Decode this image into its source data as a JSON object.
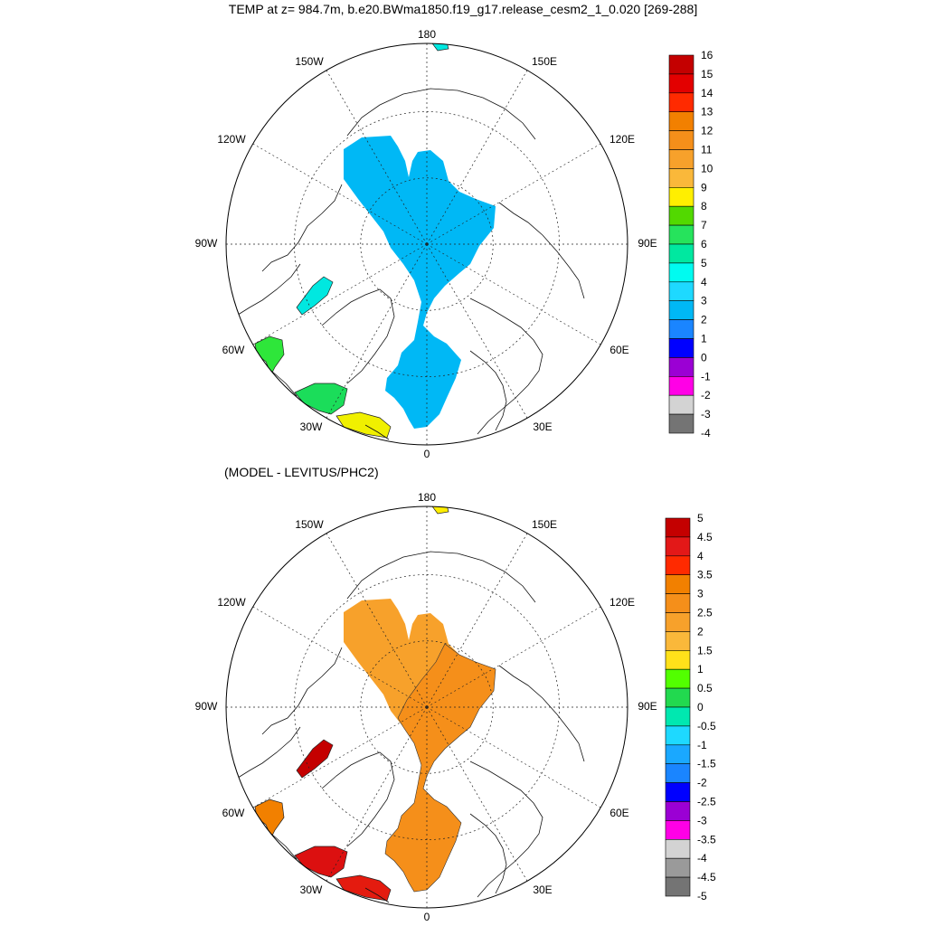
{
  "title": "TEMP at z= 984.7m, b.e20.BWma1850.f19_g17.release_cesm2_1_0.020 [269-288]",
  "subtitle": "(MODEL - LEVITUS/PHC2)",
  "lon_labels": [
    "180",
    "150E",
    "120E",
    "90E",
    "60E",
    "30E",
    "0",
    "30W",
    "60W",
    "90W",
    "120W",
    "150W"
  ],
  "panels": [
    {
      "name": "model-temperature",
      "fill_hex": "#00b8f5",
      "patches": [
        {
          "region": "atlantic-south",
          "hex": "#f0f000"
        },
        {
          "region": "atlantic-mid",
          "hex": "#1bdd5a"
        },
        {
          "region": "labrador",
          "hex": "#2ee63a"
        },
        {
          "region": "baffin",
          "hex": "#00e8e0"
        },
        {
          "region": "bering",
          "hex": "#00e8e0"
        }
      ],
      "colorbar": {
        "labels": [
          "16",
          "15",
          "14",
          "13",
          "12",
          "11",
          "10",
          "9",
          "8",
          "7",
          "6",
          "5",
          "4",
          "3",
          "2",
          "1",
          "0",
          "-1",
          "-2",
          "-3",
          "-4"
        ],
        "colors": [
          "#c40000",
          "#e30000",
          "#ff2a00",
          "#f28000",
          "#f58f1a",
          "#f7a12b",
          "#fab83a",
          "#ffef00",
          "#52d900",
          "#26e35c",
          "#00e8a0",
          "#00fbf0",
          "#1ed9ff",
          "#00b8f5",
          "#1a85ff",
          "#0000ff",
          "#9b00d4",
          "#ff00e6",
          "#d3d3d3",
          "#747474"
        ]
      }
    },
    {
      "name": "model-minus-levitus",
      "fill_hex": "#f7a12b",
      "fill2_hex": "#f58f1a",
      "patches": [
        {
          "region": "atlantic-south",
          "hex": "#e41b0f"
        },
        {
          "region": "atlantic-mid",
          "hex": "#dc1010"
        },
        {
          "region": "labrador",
          "hex": "#f28000"
        },
        {
          "region": "baffin",
          "hex": "#c40000"
        },
        {
          "region": "bering",
          "hex": "#ffee00"
        }
      ],
      "colorbar": {
        "labels": [
          "5",
          "4.5",
          "4",
          "3.5",
          "3",
          "2.5",
          "2",
          "1.5",
          "1",
          "0.5",
          "0",
          "-0.5",
          "-1",
          "-1.5",
          "-2",
          "-2.5",
          "-3",
          "-3.5",
          "-4",
          "-4.5",
          "-5"
        ],
        "colors": [
          "#c40000",
          "#e31818",
          "#ff2a00",
          "#f28000",
          "#f58f1a",
          "#f7a12b",
          "#fab83a",
          "#ffe11a",
          "#52ff00",
          "#22d94f",
          "#00e8b0",
          "#1ed9ff",
          "#1aa8ff",
          "#1a85ff",
          "#0000ff",
          "#9b00d4",
          "#ff00e6",
          "#d3d3d3",
          "#9a9a9a",
          "#747474"
        ]
      }
    }
  ]
}
